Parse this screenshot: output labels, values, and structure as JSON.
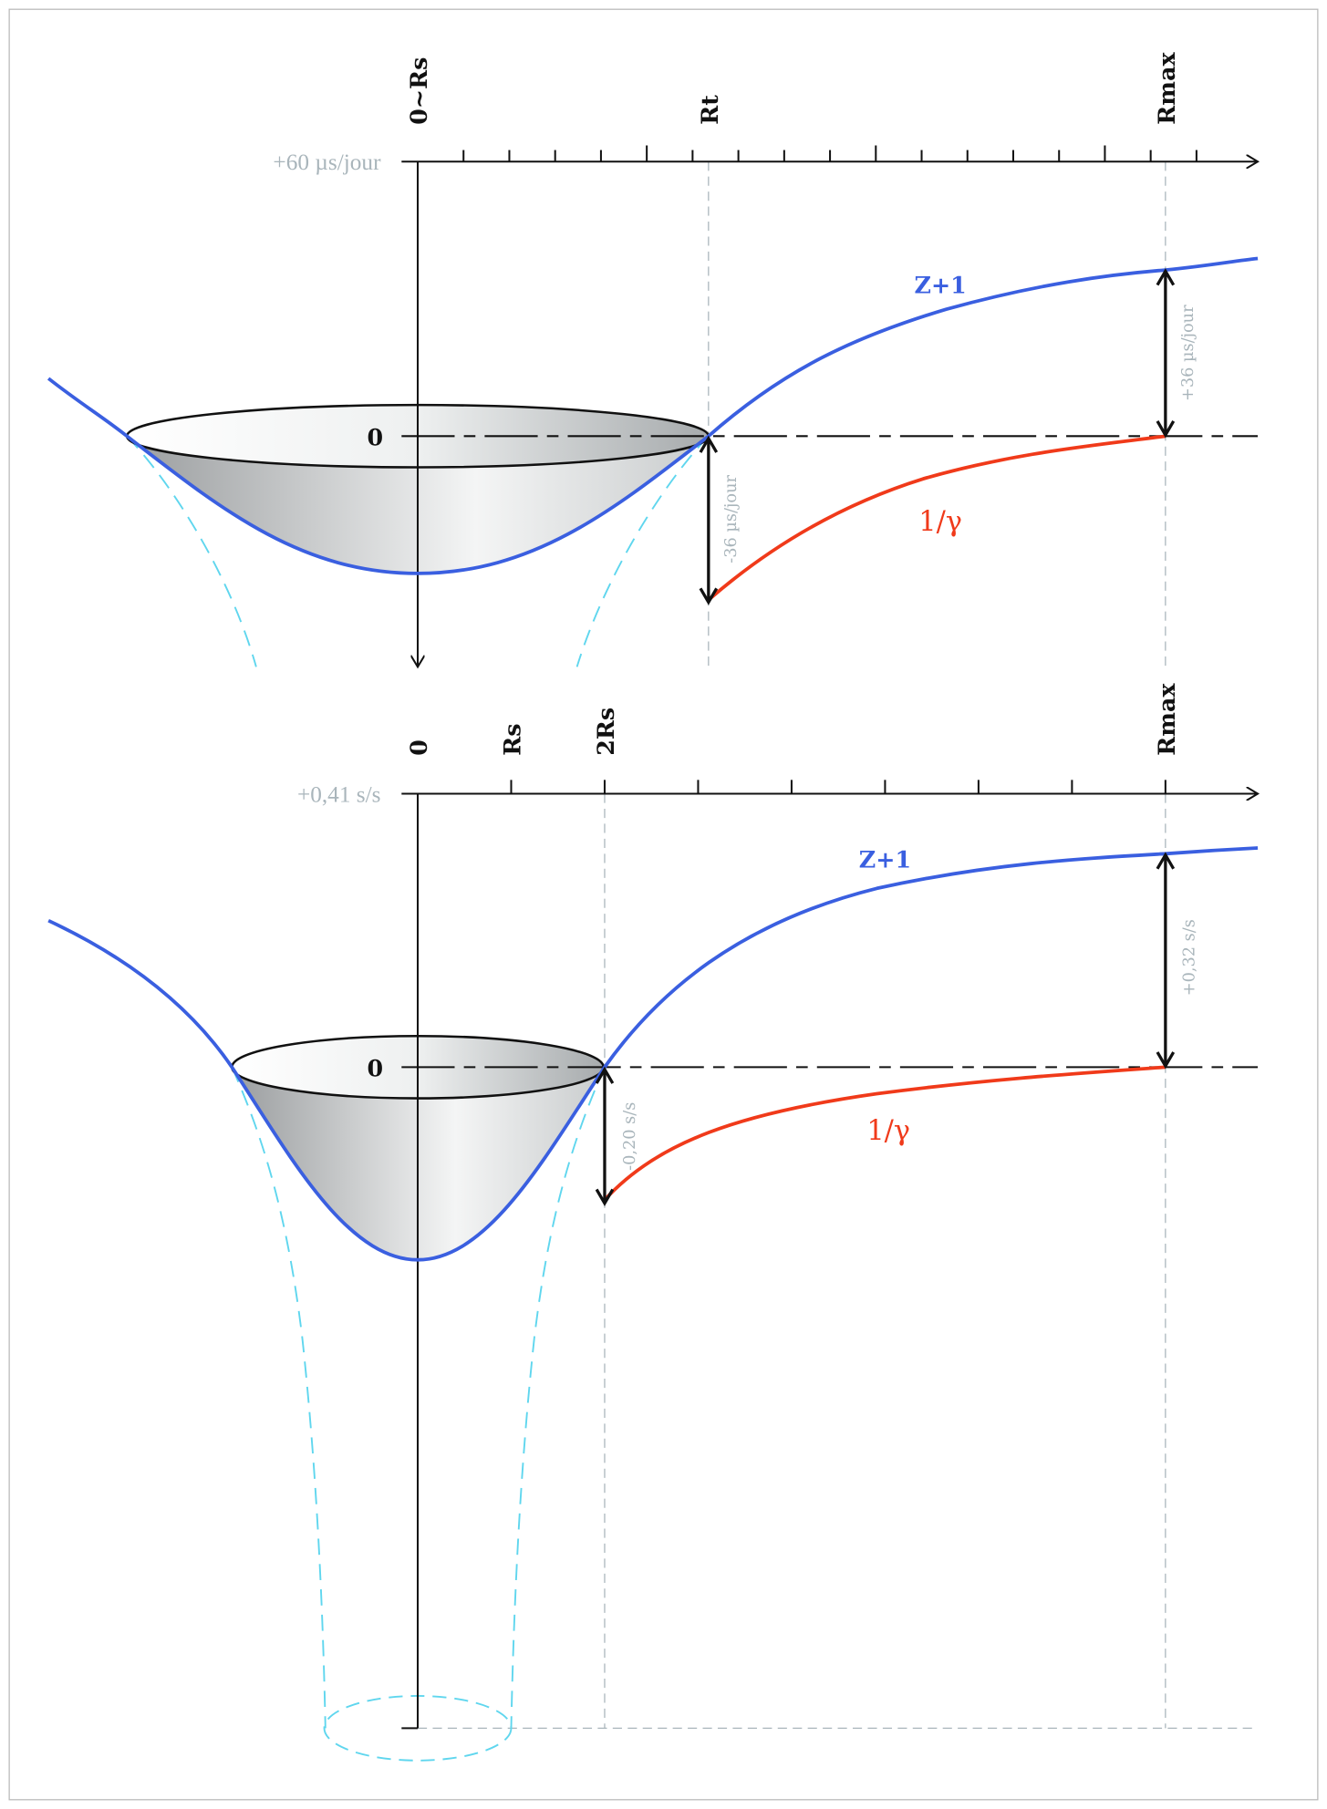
{
  "colors": {
    "z_plus_1": "#3a5fe0",
    "inverse_gamma": "#f03a1a",
    "guide": "#a9b5bb",
    "horizon_dashed": "#5fd6ee"
  },
  "top": {
    "axis_labels": {
      "origin": "0~Rs",
      "rt": "Rt",
      "rmax": "Rmax"
    },
    "scale_label": "+60 µs/jour",
    "zero_label": "0",
    "curve_z_label": "Z+1",
    "curve_gamma_label": "1/γ",
    "delta_low_label": "-36 µs/jour",
    "delta_high_label": "+36 µs/jour"
  },
  "bottom": {
    "axis_labels": {
      "origin": "0",
      "rs": "Rs",
      "two_rs": "2Rs",
      "rmax": "Rmax"
    },
    "scale_label": "+0,41 s/s",
    "zero_label": "0",
    "curve_z_label": "Z+1",
    "curve_gamma_label": "1/γ",
    "delta_low_label": "-0,20 s/s",
    "delta_high_label": "+0,32 s/s"
  }
}
